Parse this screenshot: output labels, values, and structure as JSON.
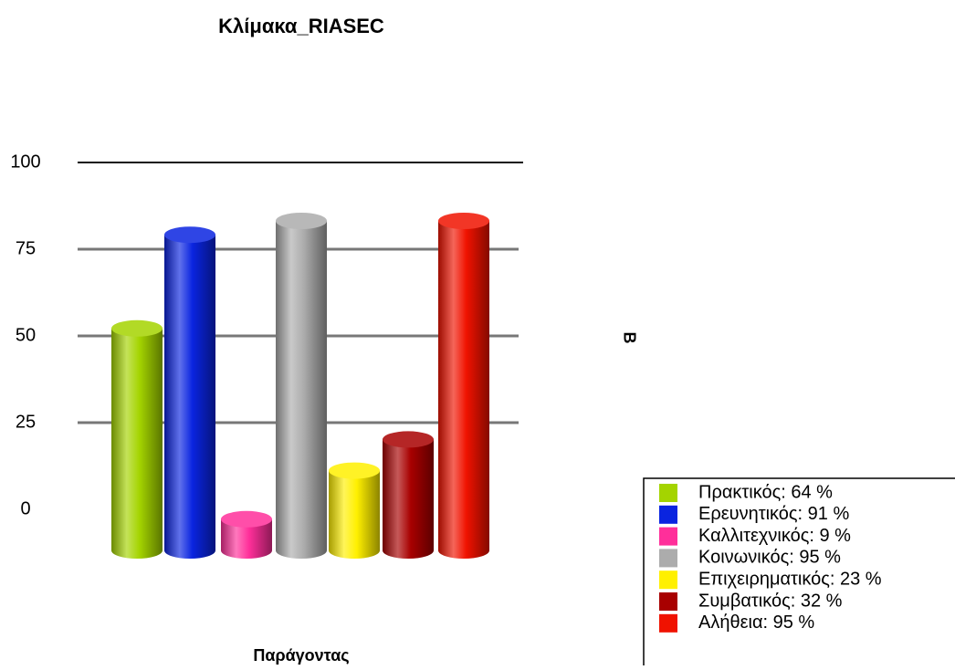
{
  "chart_data": {
    "type": "bar",
    "title": "Κλίμακα_RIASEC",
    "x_label": "Παράγοντας",
    "y_label": "Β",
    "categories": [
      "Πρακτικός: 64 %",
      "Ερευνητικός: 91 %",
      "Καλλιτεχνικός: 9 %",
      "Κοινωνικός: 95 %",
      "Επιχειρηματικός: 23 %",
      "Συμβατικός: 32 %",
      "Αλήθεια: 95 %"
    ],
    "values": [
      64,
      91,
      9,
      95,
      23,
      32,
      95
    ],
    "colors": [
      "#a4d400",
      "#0a24e0",
      "#ff2f9a",
      "#acacac",
      "#fff000",
      "#a80000",
      "#f01200"
    ],
    "ylim": [
      0,
      100
    ],
    "yticks": [
      0,
      25,
      50,
      75,
      100
    ],
    "grid": true,
    "legend": "lower right"
  }
}
